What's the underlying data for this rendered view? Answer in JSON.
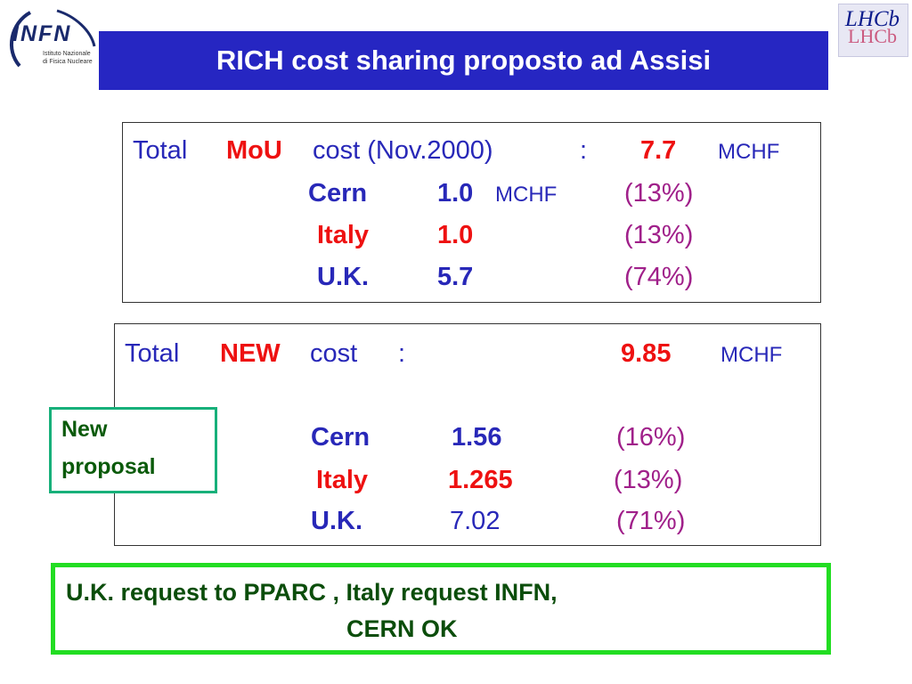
{
  "header": {
    "title": "RICH cost sharing proposto ad Assisi",
    "left_logo": {
      "name": "INFN",
      "line1": "Istituto Nazionale",
      "line2": "di Fisica Nucleare"
    },
    "right_logo": {
      "name": "LHCb",
      "ghost": "LHCb"
    }
  },
  "mou": {
    "total_word": "Total",
    "keyword": "MoU",
    "label_rest": "cost (Nov.2000)",
    "colon": ":",
    "total_value": "7.7",
    "unit": "MCHF",
    "rows": [
      {
        "country": "Cern",
        "value": "1.0",
        "unit": "MCHF",
        "pct": "(13%)"
      },
      {
        "country": "Italy",
        "value": "1.0",
        "unit": "",
        "pct": "(13%)"
      },
      {
        "country": "U.K.",
        "value": "5.7",
        "unit": "",
        "pct": "(74%)"
      }
    ]
  },
  "new_cost": {
    "total_word": "Total",
    "keyword": "NEW",
    "label_rest": "cost",
    "colon": ":",
    "total_value": "9.85",
    "unit": "MCHF",
    "rows": [
      {
        "country": "Cern",
        "value": "1.56",
        "pct": "(16%)"
      },
      {
        "country": "Italy",
        "value": "1.265",
        "pct": "(13%)"
      },
      {
        "country": "U.K.",
        "value": "7.02",
        "pct": "(71%)"
      }
    ]
  },
  "new_proposal": {
    "line1": "New",
    "line2": "proposal"
  },
  "request": {
    "line1": "U.K. request to PPARC  ,  Italy request INFN,",
    "line2": "CERN  OK"
  },
  "colors": {
    "title_bg": "#2626c2",
    "text_blue": "#2828b8",
    "highlight_red": "#ee1111",
    "pct_magenta": "#a0208a",
    "proposal_border": "#17b07a",
    "request_border": "#22dd22"
  }
}
